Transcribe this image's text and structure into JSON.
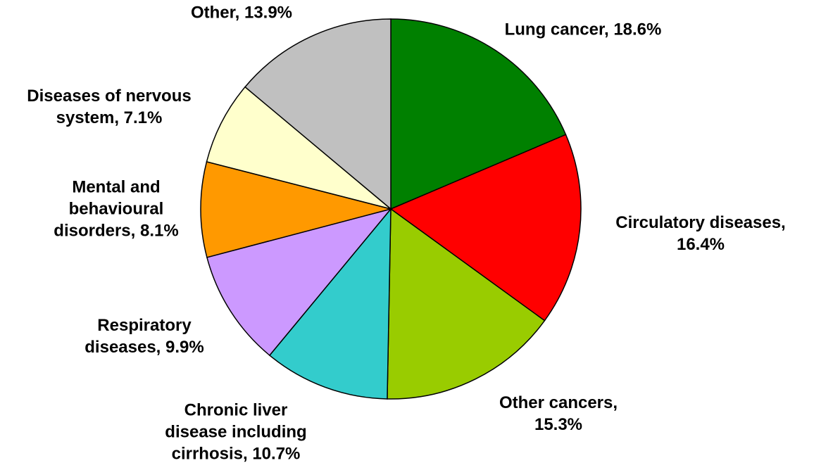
{
  "chart_data": {
    "type": "pie",
    "value_labels": [
      "Lung cancer, 18.6%",
      "Circulatory diseases, 16.4%",
      "Other cancers, 15.3%",
      "Chronic liver disease including cirrhosis, 10.7%",
      "Respiratory diseases, 9.9%",
      "Mental and behavioural disorders, 8.1%",
      "Diseases of nervous system, 7.1%",
      "Other, 13.9%"
    ],
    "values": [
      18.6,
      16.4,
      15.3,
      10.7,
      9.9,
      8.1,
      7.1,
      13.9
    ],
    "colors": [
      "#008000",
      "#ff0000",
      "#99cc00",
      "#33cccc",
      "#cc99ff",
      "#ff9900",
      "#ffffcc",
      "#c0c0c0"
    ]
  }
}
